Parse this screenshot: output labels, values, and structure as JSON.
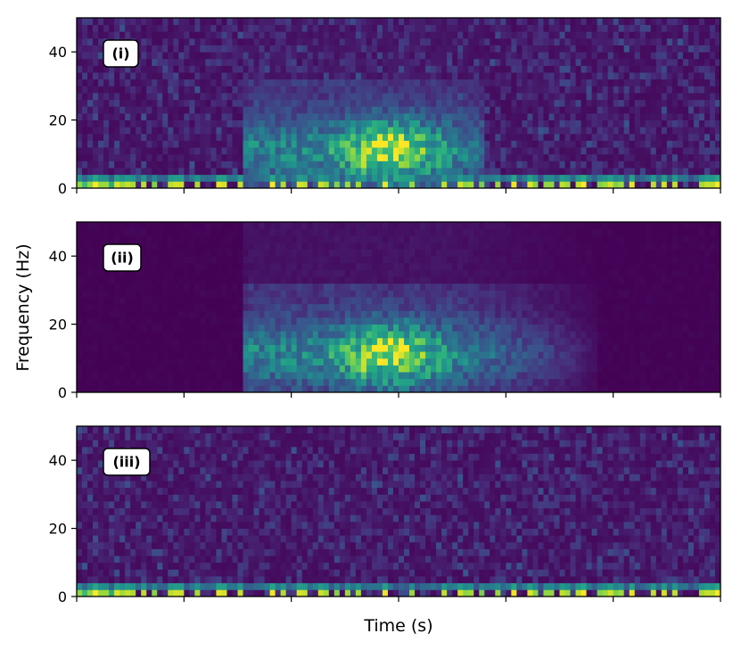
{
  "chart_data": {
    "type": "heatmap",
    "title": "",
    "xlabel": "Time (s)",
    "ylabel": "Frequency (Hz)",
    "ylim": [
      0,
      50
    ],
    "y_ticks": [
      "0",
      "20",
      "40"
    ],
    "x_tick_count": 7,
    "x_tick_labels_shown": false,
    "colormap": "viridis",
    "colormap_colors": [
      "#440154",
      "#3b528b",
      "#21918c",
      "#5ec962",
      "#fde725"
    ],
    "time_bins": 120,
    "freq_bins": 25,
    "panels": [
      {
        "label": "(i)",
        "description_level": "noisy",
        "onset_fraction": 0.25,
        "event_start_fraction": 0.25,
        "event_end_fraction": 0.63,
        "peak_fraction": 0.48,
        "peak_freq_hz": 11,
        "low_freq_bursts": true,
        "background_noise": 0.55
      },
      {
        "label": "(ii)",
        "description_level": "clean",
        "onset_fraction": 0.25,
        "event_start_fraction": 0.25,
        "event_end_fraction": 0.8,
        "peak_fraction": 0.48,
        "peak_freq_hz": 11,
        "low_freq_bursts": false,
        "background_noise": 0.05
      },
      {
        "label": "(iii)",
        "description_level": "noise",
        "onset_fraction": null,
        "event_start_fraction": null,
        "event_end_fraction": null,
        "peak_fraction": null,
        "peak_freq_hz": null,
        "low_freq_bursts": true,
        "background_noise": 0.55
      }
    ]
  }
}
